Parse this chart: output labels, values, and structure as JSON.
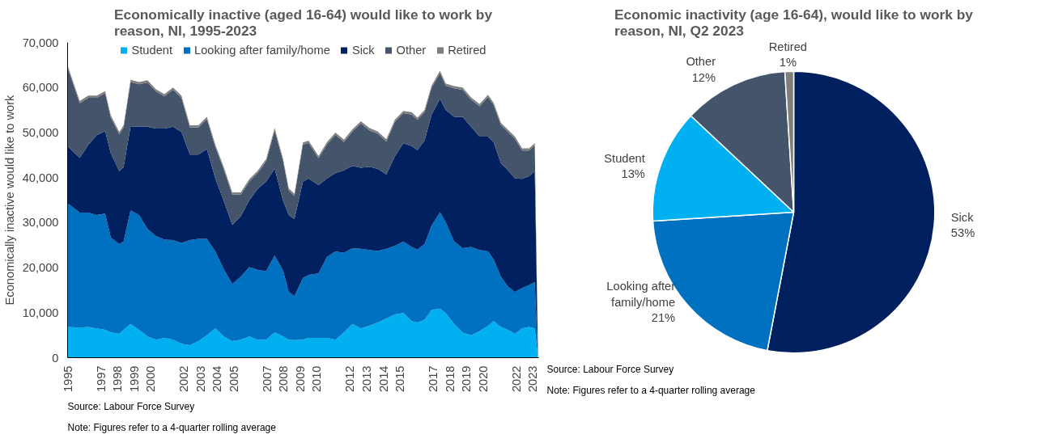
{
  "chart_data": [
    {
      "type": "area",
      "stacked": true,
      "title": "Economically inactive (aged 16-64) would like to work by reason, NI, 1995-2023",
      "ylabel": "Economically inactive would like to work",
      "x": [
        1995.0,
        1995.73,
        1996.24,
        1996.75,
        1997.26,
        1997.6,
        1998.11,
        1998.37,
        1998.79,
        1999.3,
        1999.81,
        2000.32,
        2000.83,
        2001.34,
        2001.85,
        2002.36,
        2002.87,
        2003.38,
        2003.89,
        2004.4,
        2004.91,
        2005.42,
        2005.93,
        2006.44,
        2006.95,
        2007.46,
        2007.97,
        2008.31,
        2008.65,
        2009.16,
        2009.5,
        2010.1,
        2010.61,
        2011.12,
        2011.63,
        2012.14,
        2012.65,
        2013.16,
        2013.67,
        2014.18,
        2014.69,
        2015.2,
        2015.71,
        2016.05,
        2016.48,
        2016.9,
        2017.41,
        2017.75,
        2018.26,
        2018.77,
        2019.28,
        2019.79,
        2020.3,
        2020.64,
        2021.07,
        2021.5,
        2021.92,
        2022.35,
        2022.77,
        2023.11,
        2023.31
      ],
      "series": [
        {
          "name": "Student",
          "color": "#00b0f0",
          "values": [
            6800,
            6700,
            6800,
            6500,
            6200,
            5600,
            5300,
            6200,
            7500,
            6200,
            4700,
            4000,
            4400,
            4000,
            3100,
            2800,
            3700,
            5000,
            6500,
            4700,
            3700,
            4000,
            4700,
            4000,
            4000,
            5600,
            4700,
            4000,
            3900,
            4000,
            4400,
            4400,
            4400,
            4000,
            5600,
            7500,
            6500,
            7100,
            7800,
            8700,
            9600,
            9900,
            8100,
            7800,
            8400,
            10600,
            10900,
            9900,
            7500,
            5600,
            5000,
            5900,
            7100,
            8100,
            6800,
            6200,
            5300,
            6500,
            6800,
            6500,
            0
          ]
        },
        {
          "name": "Looking after family/home",
          "color": "#0070c0",
          "values": [
            27500,
            25500,
            25400,
            25200,
            25800,
            21100,
            19900,
            19600,
            25200,
            25500,
            23900,
            23000,
            21800,
            22100,
            22400,
            23300,
            22700,
            21400,
            17100,
            14900,
            12700,
            14000,
            15400,
            15500,
            15200,
            17100,
            14600,
            10600,
            9800,
            13700,
            14000,
            14300,
            18000,
            19600,
            17700,
            16800,
            17700,
            16800,
            15900,
            15500,
            15200,
            15900,
            16500,
            16200,
            16800,
            18700,
            21400,
            20200,
            18300,
            18700,
            19600,
            18000,
            16500,
            13700,
            11200,
            9600,
            9300,
            9000,
            9300,
            10300,
            0
          ]
        },
        {
          "name": "Sick",
          "color": "#002060",
          "values": [
            12700,
            12200,
            15000,
            17700,
            18300,
            18700,
            16200,
            16500,
            18700,
            19600,
            22700,
            23900,
            24700,
            25200,
            24600,
            19000,
            18700,
            19900,
            16200,
            15200,
            13100,
            13400,
            14800,
            18000,
            19900,
            19300,
            15500,
            17100,
            17100,
            21400,
            21400,
            19600,
            17400,
            17400,
            18300,
            18300,
            18000,
            18500,
            18200,
            16500,
            19900,
            21800,
            22400,
            22100,
            23000,
            24600,
            25200,
            24900,
            27700,
            29200,
            26700,
            25200,
            25500,
            26100,
            25200,
            25800,
            25200,
            24200,
            24200,
            24600,
            0
          ]
        },
        {
          "name": "Other",
          "color": "#44546a",
          "values": [
            17400,
            12100,
            10500,
            8300,
            8400,
            7900,
            8200,
            8800,
            9800,
            9400,
            9800,
            8200,
            7100,
            8200,
            7600,
            6000,
            6000,
            6700,
            7000,
            7000,
            6700,
            4800,
            4200,
            3500,
            4500,
            8500,
            8800,
            5400,
            5100,
            8200,
            7900,
            6000,
            7600,
            8500,
            6300,
            7600,
            9800,
            8100,
            7800,
            7300,
            7600,
            6700,
            7000,
            6700,
            6300,
            6000,
            5700,
            5400,
            6300,
            6000,
            6000,
            6700,
            8800,
            8200,
            8500,
            8500,
            8800,
            6300,
            5700,
            5700,
            0
          ]
        },
        {
          "name": "Retired",
          "color": "#7f7f7f",
          "values": [
            500,
            500,
            500,
            500,
            500,
            500,
            500,
            500,
            500,
            500,
            500,
            500,
            500,
            500,
            500,
            500,
            500,
            500,
            500,
            500,
            500,
            500,
            500,
            500,
            500,
            500,
            500,
            500,
            500,
            500,
            500,
            500,
            500,
            500,
            500,
            500,
            500,
            500,
            500,
            500,
            500,
            500,
            500,
            500,
            500,
            500,
            500,
            500,
            500,
            500,
            500,
            500,
            500,
            500,
            500,
            500,
            500,
            500,
            500,
            500,
            0
          ]
        }
      ],
      "xlim": [
        1995.0,
        2023.35
      ],
      "ylim": [
        0,
        70000
      ],
      "xticks": [
        1995,
        1997,
        1998,
        1999,
        2000,
        2002,
        2003,
        2004,
        2005,
        2007,
        2008,
        2009,
        2010,
        2012,
        2013,
        2014,
        2015,
        2017,
        2018,
        2019,
        2020,
        2022,
        2023
      ],
      "yticks": [
        {
          "value": 0,
          "label": "0"
        },
        {
          "value": 10000,
          "label": "10,000"
        },
        {
          "value": 20000,
          "label": "20,000"
        },
        {
          "value": 30000,
          "label": "30,000"
        },
        {
          "value": 40000,
          "label": "40,000"
        },
        {
          "value": 50000,
          "label": "50,000"
        },
        {
          "value": 60000,
          "label": "60,000"
        },
        {
          "value": 70000,
          "label": "70,000"
        }
      ],
      "grid": false,
      "legend": "top",
      "annotations": [
        "Source: Labour Force Survey",
        "Note: Figures refer to a 4-quarter rolling average"
      ]
    },
    {
      "type": "pie",
      "title": "Economic inactivity (age 16-64), would like to work by reason, NI, Q2 2023",
      "categories": [
        "Sick",
        "Looking after family/home",
        "Student",
        "Other",
        "Retired"
      ],
      "values": [
        53,
        21,
        13,
        12,
        1
      ],
      "colors": [
        "#002060",
        "#0070c0",
        "#00b0f0",
        "#44546a",
        "#7f7f7f"
      ],
      "value_labels": [
        "53%",
        "21%",
        "13%",
        "12%",
        "1%"
      ],
      "annotations": [
        "Source: Labour Force Survey",
        "Note: Figures refer to a 4-quarter rolling average"
      ]
    }
  ]
}
